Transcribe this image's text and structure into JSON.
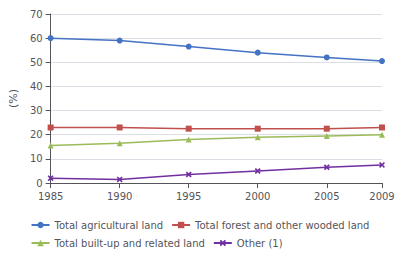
{
  "chart_data": {
    "type": "line",
    "x": [
      1985,
      1990,
      1995,
      2000,
      2005,
      2009
    ],
    "series": [
      {
        "name": "Total agricultural land",
        "color": "#4472C4",
        "marker": "circle",
        "values": [
          60.0,
          59.0,
          56.5,
          54.0,
          52.0,
          50.5
        ]
      },
      {
        "name": "Total forest and other wooded land",
        "color": "#C0504D",
        "marker": "square",
        "values": [
          23.0,
          23.0,
          22.5,
          22.5,
          22.5,
          23.0
        ]
      },
      {
        "name": "Total built-up and related land",
        "color": "#9BBB59",
        "marker": "triangle",
        "values": [
          15.5,
          16.5,
          18.0,
          19.0,
          19.5,
          20.0
        ]
      },
      {
        "name": "Other (1)",
        "color": "#7030A0",
        "marker": "x",
        "values": [
          2.0,
          1.5,
          3.5,
          5.0,
          6.5,
          7.5
        ]
      }
    ],
    "ylabel": "(%)",
    "xlim": [
      1985,
      2009
    ],
    "xticks": [
      1985,
      1990,
      1995,
      2000,
      2005,
      2009
    ],
    "ylim": [
      0,
      70
    ],
    "yticks": [
      0,
      10,
      20,
      30,
      40,
      50,
      60,
      70
    ],
    "grid": true,
    "legend": "bottom"
  }
}
